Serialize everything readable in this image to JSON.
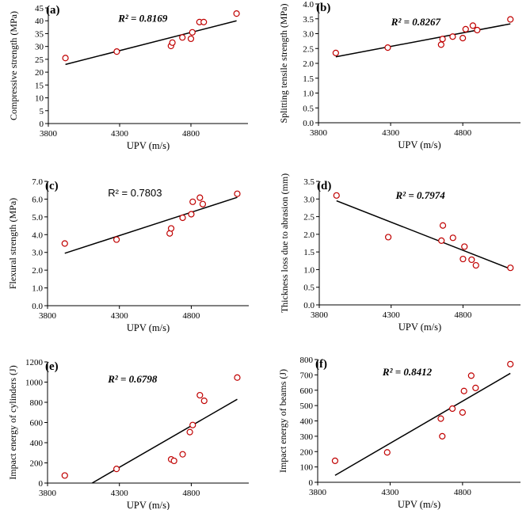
{
  "chart_data": [
    {
      "type": "scatter",
      "panel_label": "(a)",
      "xlabel": "UPV (m/s)",
      "ylabel": "Compressive strength (MPa)",
      "r2_text": "R² = 0.8169",
      "r2_style": "bold-italic",
      "xlim": [
        3800,
        5200
      ],
      "ylim": [
        0,
        45
      ],
      "xticks": [
        3800,
        4300,
        4800
      ],
      "yticks": [
        0,
        5,
        10,
        15,
        20,
        25,
        30,
        35,
        40,
        45
      ],
      "ytick_decimals": 0,
      "x": [
        3920,
        4280,
        4660,
        4670,
        4740,
        4800,
        4810,
        4860,
        4890,
        5120
      ],
      "y": [
        25.5,
        28,
        30.2,
        31.5,
        33.5,
        33,
        35.5,
        39.5,
        39.5,
        42.8
      ],
      "trendline": {
        "x": [
          3920,
          5120
        ],
        "y": [
          23,
          40
        ]
      }
    },
    {
      "type": "scatter",
      "panel_label": "(b)",
      "xlabel": "UPV (m/s)",
      "ylabel": "Splitting tensile strength (MPa)",
      "r2_text": "R² = 0.8267",
      "r2_style": "bold-italic",
      "xlim": [
        3800,
        5200
      ],
      "ylim": [
        0,
        4
      ],
      "xticks": [
        3800,
        4300,
        4800
      ],
      "yticks": [
        0,
        0.5,
        1,
        1.5,
        2,
        2.5,
        3,
        3.5,
        4
      ],
      "ytick_decimals": 1,
      "x": [
        3920,
        4280,
        4650,
        4660,
        4730,
        4800,
        4820,
        4870,
        4900,
        5130
      ],
      "y": [
        2.35,
        2.53,
        2.63,
        2.82,
        2.9,
        2.85,
        3.15,
        3.27,
        3.12,
        3.48
      ],
      "trendline": {
        "x": [
          3920,
          5130
        ],
        "y": [
          2.22,
          3.33
        ]
      }
    },
    {
      "type": "scatter",
      "panel_label": "(c)",
      "xlabel": "UPV (m/s)",
      "ylabel": "Flexural strength (MPa)",
      "r2_text": "R² = 0.7803",
      "r2_style": "plain",
      "xlim": [
        3800,
        5200
      ],
      "ylim": [
        0,
        7
      ],
      "xticks": [
        3800,
        4300,
        4800
      ],
      "yticks": [
        0,
        1,
        2,
        3,
        4,
        5,
        6,
        7
      ],
      "ytick_decimals": 1,
      "x": [
        3920,
        4280,
        4650,
        4660,
        4740,
        4800,
        4810,
        4860,
        4880,
        5120
      ],
      "y": [
        3.5,
        3.72,
        4.07,
        4.35,
        4.95,
        5.15,
        5.85,
        6.08,
        5.72,
        6.3
      ],
      "trendline": {
        "x": [
          3920,
          5120
        ],
        "y": [
          2.95,
          6.1
        ]
      }
    },
    {
      "type": "scatter",
      "panel_label": "(d)",
      "xlabel": "UPV (m/s)",
      "ylabel": "Thickness loss due to abrasion (mm)",
      "r2_text": "R² = 0.7974",
      "r2_style": "bold-italic",
      "xlim": [
        3800,
        5200
      ],
      "ylim": [
        0,
        3.5
      ],
      "xticks": [
        3800,
        4300,
        4800
      ],
      "yticks": [
        0,
        0.5,
        1,
        1.5,
        2,
        2.5,
        3,
        3.5
      ],
      "ytick_decimals": 1,
      "x": [
        3920,
        4280,
        4650,
        4660,
        4730,
        4800,
        4810,
        4860,
        4890,
        5130
      ],
      "y": [
        3.1,
        1.92,
        1.82,
        2.25,
        1.9,
        1.3,
        1.65,
        1.28,
        1.12,
        1.05
      ],
      "trendline": {
        "x": [
          3920,
          5130
        ],
        "y": [
          2.95,
          1.02
        ]
      }
    },
    {
      "type": "scatter",
      "panel_label": "(e)",
      "xlabel": "UPV (m/s)",
      "ylabel": "Impact energy of cylinders (J)",
      "r2_text": "R² = 0.6798",
      "r2_style": "bold-italic",
      "xlim": [
        3800,
        5200
      ],
      "ylim": [
        0,
        1200
      ],
      "xticks": [
        3800,
        4300,
        4800
      ],
      "yticks": [
        0,
        200,
        400,
        600,
        800,
        1000,
        1200
      ],
      "ytick_decimals": 0,
      "x": [
        3920,
        4280,
        4660,
        4680,
        4740,
        4790,
        4810,
        4860,
        4890,
        5120
      ],
      "y": [
        75,
        140,
        235,
        220,
        285,
        505,
        575,
        870,
        815,
        1045
      ],
      "trendline": {
        "x": [
          4110,
          5120
        ],
        "y": [
          0,
          830
        ]
      }
    },
    {
      "type": "scatter",
      "panel_label": "(f)",
      "xlabel": "UPV (m/s)",
      "ylabel": "Impact energy of beams (J)",
      "r2_text": "R² = 0.8412",
      "r2_style": "bold-italic",
      "xlim": [
        3800,
        5200
      ],
      "ylim": [
        0,
        800
      ],
      "xticks": [
        3800,
        4300,
        4800
      ],
      "yticks": [
        0,
        100,
        200,
        300,
        400,
        500,
        600,
        700,
        800
      ],
      "ytick_decimals": 0,
      "x": [
        3920,
        4280,
        4650,
        4660,
        4730,
        4800,
        4810,
        4860,
        4890,
        5130
      ],
      "y": [
        140,
        195,
        415,
        300,
        480,
        455,
        595,
        695,
        615,
        770
      ],
      "trendline": {
        "x": [
          3920,
          5130
        ],
        "y": [
          45,
          710
        ]
      }
    }
  ],
  "colors": {
    "marker": "#c00000",
    "line": "#000000",
    "axis": "#000000"
  }
}
